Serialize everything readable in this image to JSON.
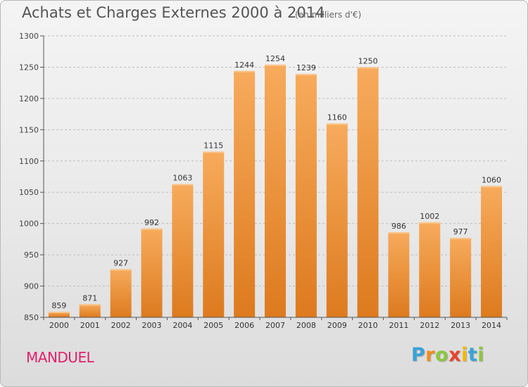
{
  "title": "Achats et Charges Externes 2000 à 2014",
  "subtitle": "(en milliers d'€)",
  "town": "MANDUEL",
  "logo": {
    "letters": [
      "P",
      "r",
      "o",
      "x",
      "i",
      "t",
      "i"
    ],
    "colors": [
      "#3aa2d8",
      "#f08c1c",
      "#8cc63f",
      "#e8452c",
      "#f5b800",
      "#3aa2d8",
      "#8cc63f"
    ]
  },
  "colors": {
    "bar_top": "#f7ab5c",
    "bar_bottom": "#dd7a1e",
    "axis": "#555555",
    "grid": "#bdbdbd"
  },
  "chart_data": {
    "type": "bar",
    "categories": [
      "2000",
      "2001",
      "2002",
      "2003",
      "2004",
      "2005",
      "2006",
      "2007",
      "2008",
      "2009",
      "2010",
      "2011",
      "2012",
      "2013",
      "2014"
    ],
    "values": [
      859,
      871,
      927,
      992,
      1063,
      1115,
      1244,
      1254,
      1239,
      1160,
      1250,
      986,
      1002,
      977,
      1060
    ],
    "ylim": [
      850,
      1300
    ],
    "yticks": [
      850,
      900,
      950,
      1000,
      1050,
      1100,
      1150,
      1200,
      1250,
      1300
    ],
    "grid": true,
    "title": "Achats et Charges Externes 2000 à 2014",
    "xlabel": "",
    "ylabel": ""
  }
}
